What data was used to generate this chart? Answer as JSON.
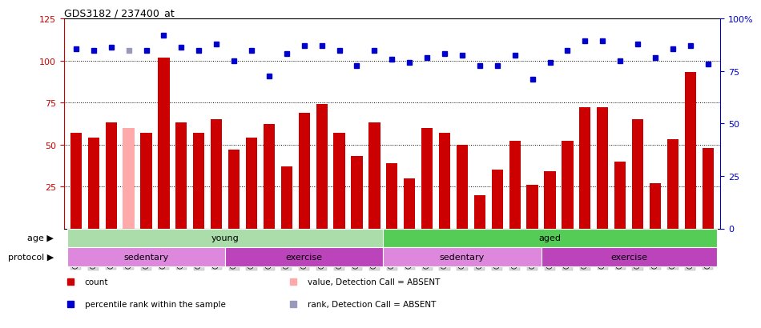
{
  "title": "GDS3182 / 237400_at",
  "samples": [
    "GSM230408",
    "GSM230409",
    "GSM230410",
    "GSM230411",
    "GSM230412",
    "GSM230413",
    "GSM230414",
    "GSM230415",
    "GSM230416",
    "GSM230417",
    "GSM230419",
    "GSM230420",
    "GSM230421",
    "GSM230422",
    "GSM230423",
    "GSM230424",
    "GSM230425",
    "GSM230426",
    "GSM230387",
    "GSM230388",
    "GSM230389",
    "GSM230390",
    "GSM230391",
    "GSM230392",
    "GSM230393",
    "GSM230394",
    "GSM230395",
    "GSM230396",
    "GSM230398",
    "GSM230399",
    "GSM230400",
    "GSM230401",
    "GSM230402",
    "GSM230403",
    "GSM230404",
    "GSM230405",
    "GSM230406"
  ],
  "bar_values": [
    57,
    54,
    63,
    60,
    57,
    102,
    63,
    57,
    65,
    47,
    54,
    62,
    37,
    69,
    74,
    57,
    43,
    63,
    39,
    30,
    60,
    57,
    50,
    20,
    35,
    52,
    26,
    34,
    52,
    72,
    72,
    40,
    65,
    27,
    53,
    93,
    48
  ],
  "absent_indices": [
    3
  ],
  "rank_values": [
    107,
    106,
    108,
    106,
    106,
    115,
    108,
    106,
    110,
    100,
    106,
    91,
    104,
    109,
    109,
    106,
    97,
    106,
    101,
    99,
    102,
    104,
    103,
    97,
    97,
    103,
    89,
    99,
    106,
    112,
    112,
    100,
    110,
    102,
    107,
    109,
    98
  ],
  "bar_color": "#cc0000",
  "absent_bar_color": "#ffaaaa",
  "rank_color": "#0000cc",
  "absent_rank_color": "#9999bb",
  "ylim_left": [
    0,
    125
  ],
  "ylim_right": [
    0,
    100
  ],
  "yticks_left": [
    25,
    50,
    75,
    100,
    125
  ],
  "yticks_right": [
    0,
    25,
    50,
    75,
    100
  ],
  "hlines": [
    25,
    50,
    75,
    100
  ],
  "age_groups": [
    {
      "label": "young",
      "start": 0,
      "end": 18,
      "color": "#aaddaa"
    },
    {
      "label": "aged",
      "start": 18,
      "end": 37,
      "color": "#55cc55"
    }
  ],
  "protocol_groups": [
    {
      "label": "sedentary",
      "start": 0,
      "end": 9,
      "color": "#dd88dd"
    },
    {
      "label": "exercise",
      "start": 9,
      "end": 18,
      "color": "#bb44bb"
    },
    {
      "label": "sedentary",
      "start": 18,
      "end": 27,
      "color": "#dd88dd"
    },
    {
      "label": "exercise",
      "start": 27,
      "end": 37,
      "color": "#bb44bb"
    }
  ],
  "age_label": "age",
  "protocol_label": "protocol",
  "legend_items": [
    {
      "color": "#cc0000",
      "label": "count",
      "marker": "s"
    },
    {
      "color": "#0000cc",
      "label": "percentile rank within the sample",
      "marker": "s"
    },
    {
      "color": "#ffaaaa",
      "label": "value, Detection Call = ABSENT",
      "marker": "s"
    },
    {
      "color": "#9999bb",
      "label": "rank, Detection Call = ABSENT",
      "marker": "s"
    }
  ]
}
